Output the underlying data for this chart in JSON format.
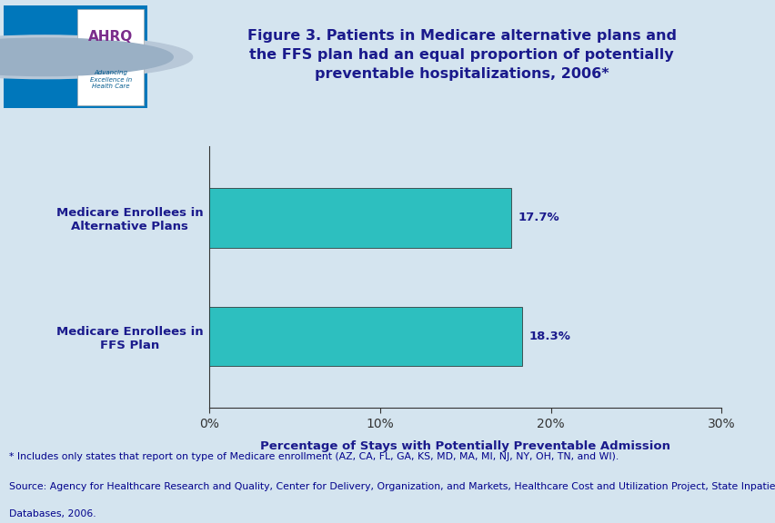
{
  "title": "Figure 3. Patients in Medicare alternative plans and\nthe FFS plan had an equal proportion of potentially\npreventable hospitalizations, 2006*",
  "categories": [
    "Medicare Enrollees in\nFFS Plan",
    "Medicare Enrollees in\nAlternative Plans"
  ],
  "values": [
    18.3,
    17.7
  ],
  "value_labels": [
    "18.3%",
    "17.7%"
  ],
  "bar_color": "#2DBFBF",
  "xlabel": "Percentage of Stays with Potentially Preventable Admission",
  "xlim": [
    0,
    30
  ],
  "xticks": [
    0,
    10,
    20,
    30
  ],
  "xticklabels": [
    "0%",
    "10%",
    "20%",
    "30%"
  ],
  "footnote1": "* Includes only states that report on type of Medicare enrollment (AZ, CA, FL, GA, KS, MD, MA, MI, NJ, NY, OH, TN, and WI).",
  "footnote2": "Source: Agency for Healthcare Research and Quality, Center for Delivery, Organization, and Markets, Healthcare Cost and Utilization Project, State Inpatient",
  "footnote3": "Databases, 2006.",
  "bg_color": "#D4E4EF",
  "header_bg": "#FFFFFF",
  "title_color": "#1A1A8C",
  "label_color": "#1A1A8C",
  "axis_label_color": "#1A1A8C",
  "footnote_color": "#00008B",
  "header_thick_line_color": "#00008B",
  "header_thin_line_color": "#6666CC",
  "bar_label_color": "#1A1A8C",
  "tick_label_color": "#1A1A8C",
  "spine_color": "#333333"
}
